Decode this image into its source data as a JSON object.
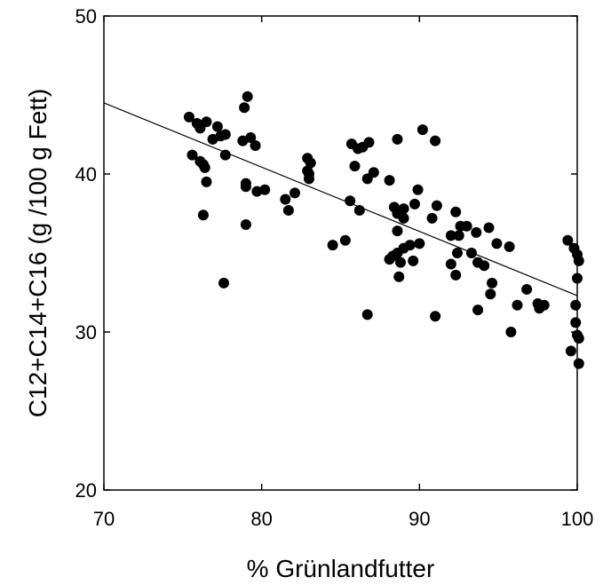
{
  "chart_data": {
    "type": "scatter",
    "title": "",
    "xlabel": "% Grünlandfutter",
    "ylabel": "C12+C14+C16 (g /100 g Fett)",
    "xlim": [
      70,
      100
    ],
    "ylim": [
      20,
      50
    ],
    "xticks": [
      70,
      80,
      90,
      100
    ],
    "yticks": [
      20,
      30,
      40,
      50
    ],
    "grid": false,
    "legend": "none",
    "colors": {
      "points": "#000000",
      "trend": "#000000",
      "axes": "#000000"
    },
    "trendline": {
      "x": [
        70,
        100
      ],
      "y": [
        44.5,
        32.3
      ]
    },
    "points": [
      {
        "x": 75.4,
        "y": 43.6
      },
      {
        "x": 75.9,
        "y": 43.2
      },
      {
        "x": 76.1,
        "y": 42.9
      },
      {
        "x": 76.5,
        "y": 43.3
      },
      {
        "x": 77.2,
        "y": 43.0
      },
      {
        "x": 77.4,
        "y": 42.4
      },
      {
        "x": 76.9,
        "y": 42.2
      },
      {
        "x": 77.7,
        "y": 42.5
      },
      {
        "x": 78.9,
        "y": 44.2
      },
      {
        "x": 79.1,
        "y": 44.9
      },
      {
        "x": 78.8,
        "y": 42.1
      },
      {
        "x": 79.3,
        "y": 42.3
      },
      {
        "x": 79.6,
        "y": 41.8
      },
      {
        "x": 75.6,
        "y": 41.2
      },
      {
        "x": 76.1,
        "y": 40.8
      },
      {
        "x": 76.3,
        "y": 40.6
      },
      {
        "x": 76.4,
        "y": 40.4
      },
      {
        "x": 77.7,
        "y": 41.2
      },
      {
        "x": 76.5,
        "y": 39.5
      },
      {
        "x": 79.0,
        "y": 39.4
      },
      {
        "x": 79.0,
        "y": 39.2
      },
      {
        "x": 79.7,
        "y": 38.9
      },
      {
        "x": 80.2,
        "y": 39.0
      },
      {
        "x": 76.3,
        "y": 37.4
      },
      {
        "x": 79.0,
        "y": 36.8
      },
      {
        "x": 77.6,
        "y": 33.1
      },
      {
        "x": 81.5,
        "y": 38.4
      },
      {
        "x": 82.1,
        "y": 38.8
      },
      {
        "x": 81.7,
        "y": 37.7
      },
      {
        "x": 82.9,
        "y": 41.0
      },
      {
        "x": 83.1,
        "y": 40.7
      },
      {
        "x": 82.9,
        "y": 40.2
      },
      {
        "x": 83.0,
        "y": 40.0
      },
      {
        "x": 83.0,
        "y": 39.7
      },
      {
        "x": 84.5,
        "y": 35.5
      },
      {
        "x": 85.3,
        "y": 35.8
      },
      {
        "x": 85.7,
        "y": 41.9
      },
      {
        "x": 86.1,
        "y": 41.6
      },
      {
        "x": 86.4,
        "y": 41.7
      },
      {
        "x": 86.8,
        "y": 42.0
      },
      {
        "x": 85.9,
        "y": 40.5
      },
      {
        "x": 87.1,
        "y": 40.1
      },
      {
        "x": 86.7,
        "y": 39.7
      },
      {
        "x": 85.6,
        "y": 38.3
      },
      {
        "x": 86.2,
        "y": 37.7
      },
      {
        "x": 86.7,
        "y": 31.1
      },
      {
        "x": 88.1,
        "y": 39.6
      },
      {
        "x": 88.6,
        "y": 42.2
      },
      {
        "x": 90.2,
        "y": 42.8
      },
      {
        "x": 91.0,
        "y": 42.1
      },
      {
        "x": 89.9,
        "y": 39.0
      },
      {
        "x": 89.7,
        "y": 38.1
      },
      {
        "x": 89.0,
        "y": 37.8
      },
      {
        "x": 88.4,
        "y": 37.9
      },
      {
        "x": 88.6,
        "y": 37.5
      },
      {
        "x": 89.0,
        "y": 37.2
      },
      {
        "x": 91.1,
        "y": 38.0
      },
      {
        "x": 88.6,
        "y": 36.4
      },
      {
        "x": 89.4,
        "y": 35.5
      },
      {
        "x": 90.0,
        "y": 35.6
      },
      {
        "x": 89.0,
        "y": 35.3
      },
      {
        "x": 88.3,
        "y": 34.8
      },
      {
        "x": 88.6,
        "y": 35.0
      },
      {
        "x": 88.1,
        "y": 34.6
      },
      {
        "x": 88.8,
        "y": 34.4
      },
      {
        "x": 89.6,
        "y": 34.5
      },
      {
        "x": 88.7,
        "y": 33.5
      },
      {
        "x": 90.8,
        "y": 37.2
      },
      {
        "x": 91.0,
        "y": 31.0
      },
      {
        "x": 92.0,
        "y": 36.1
      },
      {
        "x": 92.3,
        "y": 37.6
      },
      {
        "x": 92.6,
        "y": 36.7
      },
      {
        "x": 93.0,
        "y": 36.7
      },
      {
        "x": 93.6,
        "y": 36.3
      },
      {
        "x": 94.4,
        "y": 36.6
      },
      {
        "x": 92.5,
        "y": 36.1
      },
      {
        "x": 92.4,
        "y": 35.0
      },
      {
        "x": 92.0,
        "y": 34.3
      },
      {
        "x": 92.3,
        "y": 33.6
      },
      {
        "x": 93.3,
        "y": 35.0
      },
      {
        "x": 93.7,
        "y": 34.4
      },
      {
        "x": 94.1,
        "y": 34.2
      },
      {
        "x": 94.9,
        "y": 35.6
      },
      {
        "x": 95.7,
        "y": 35.4
      },
      {
        "x": 94.6,
        "y": 33.1
      },
      {
        "x": 94.5,
        "y": 32.4
      },
      {
        "x": 93.7,
        "y": 31.4
      },
      {
        "x": 95.8,
        "y": 30.0
      },
      {
        "x": 96.2,
        "y": 31.7
      },
      {
        "x": 96.8,
        "y": 32.7
      },
      {
        "x": 97.5,
        "y": 31.8
      },
      {
        "x": 97.6,
        "y": 31.5
      },
      {
        "x": 97.9,
        "y": 31.7
      },
      {
        "x": 99.4,
        "y": 35.8
      },
      {
        "x": 99.8,
        "y": 35.3
      },
      {
        "x": 100.0,
        "y": 34.9
      },
      {
        "x": 100.1,
        "y": 34.5
      },
      {
        "x": 100.0,
        "y": 33.4
      },
      {
        "x": 99.9,
        "y": 31.7
      },
      {
        "x": 99.9,
        "y": 30.6
      },
      {
        "x": 100.0,
        "y": 29.8
      },
      {
        "x": 100.1,
        "y": 29.6
      },
      {
        "x": 99.6,
        "y": 28.8
      },
      {
        "x": 100.1,
        "y": 28.0
      }
    ]
  }
}
